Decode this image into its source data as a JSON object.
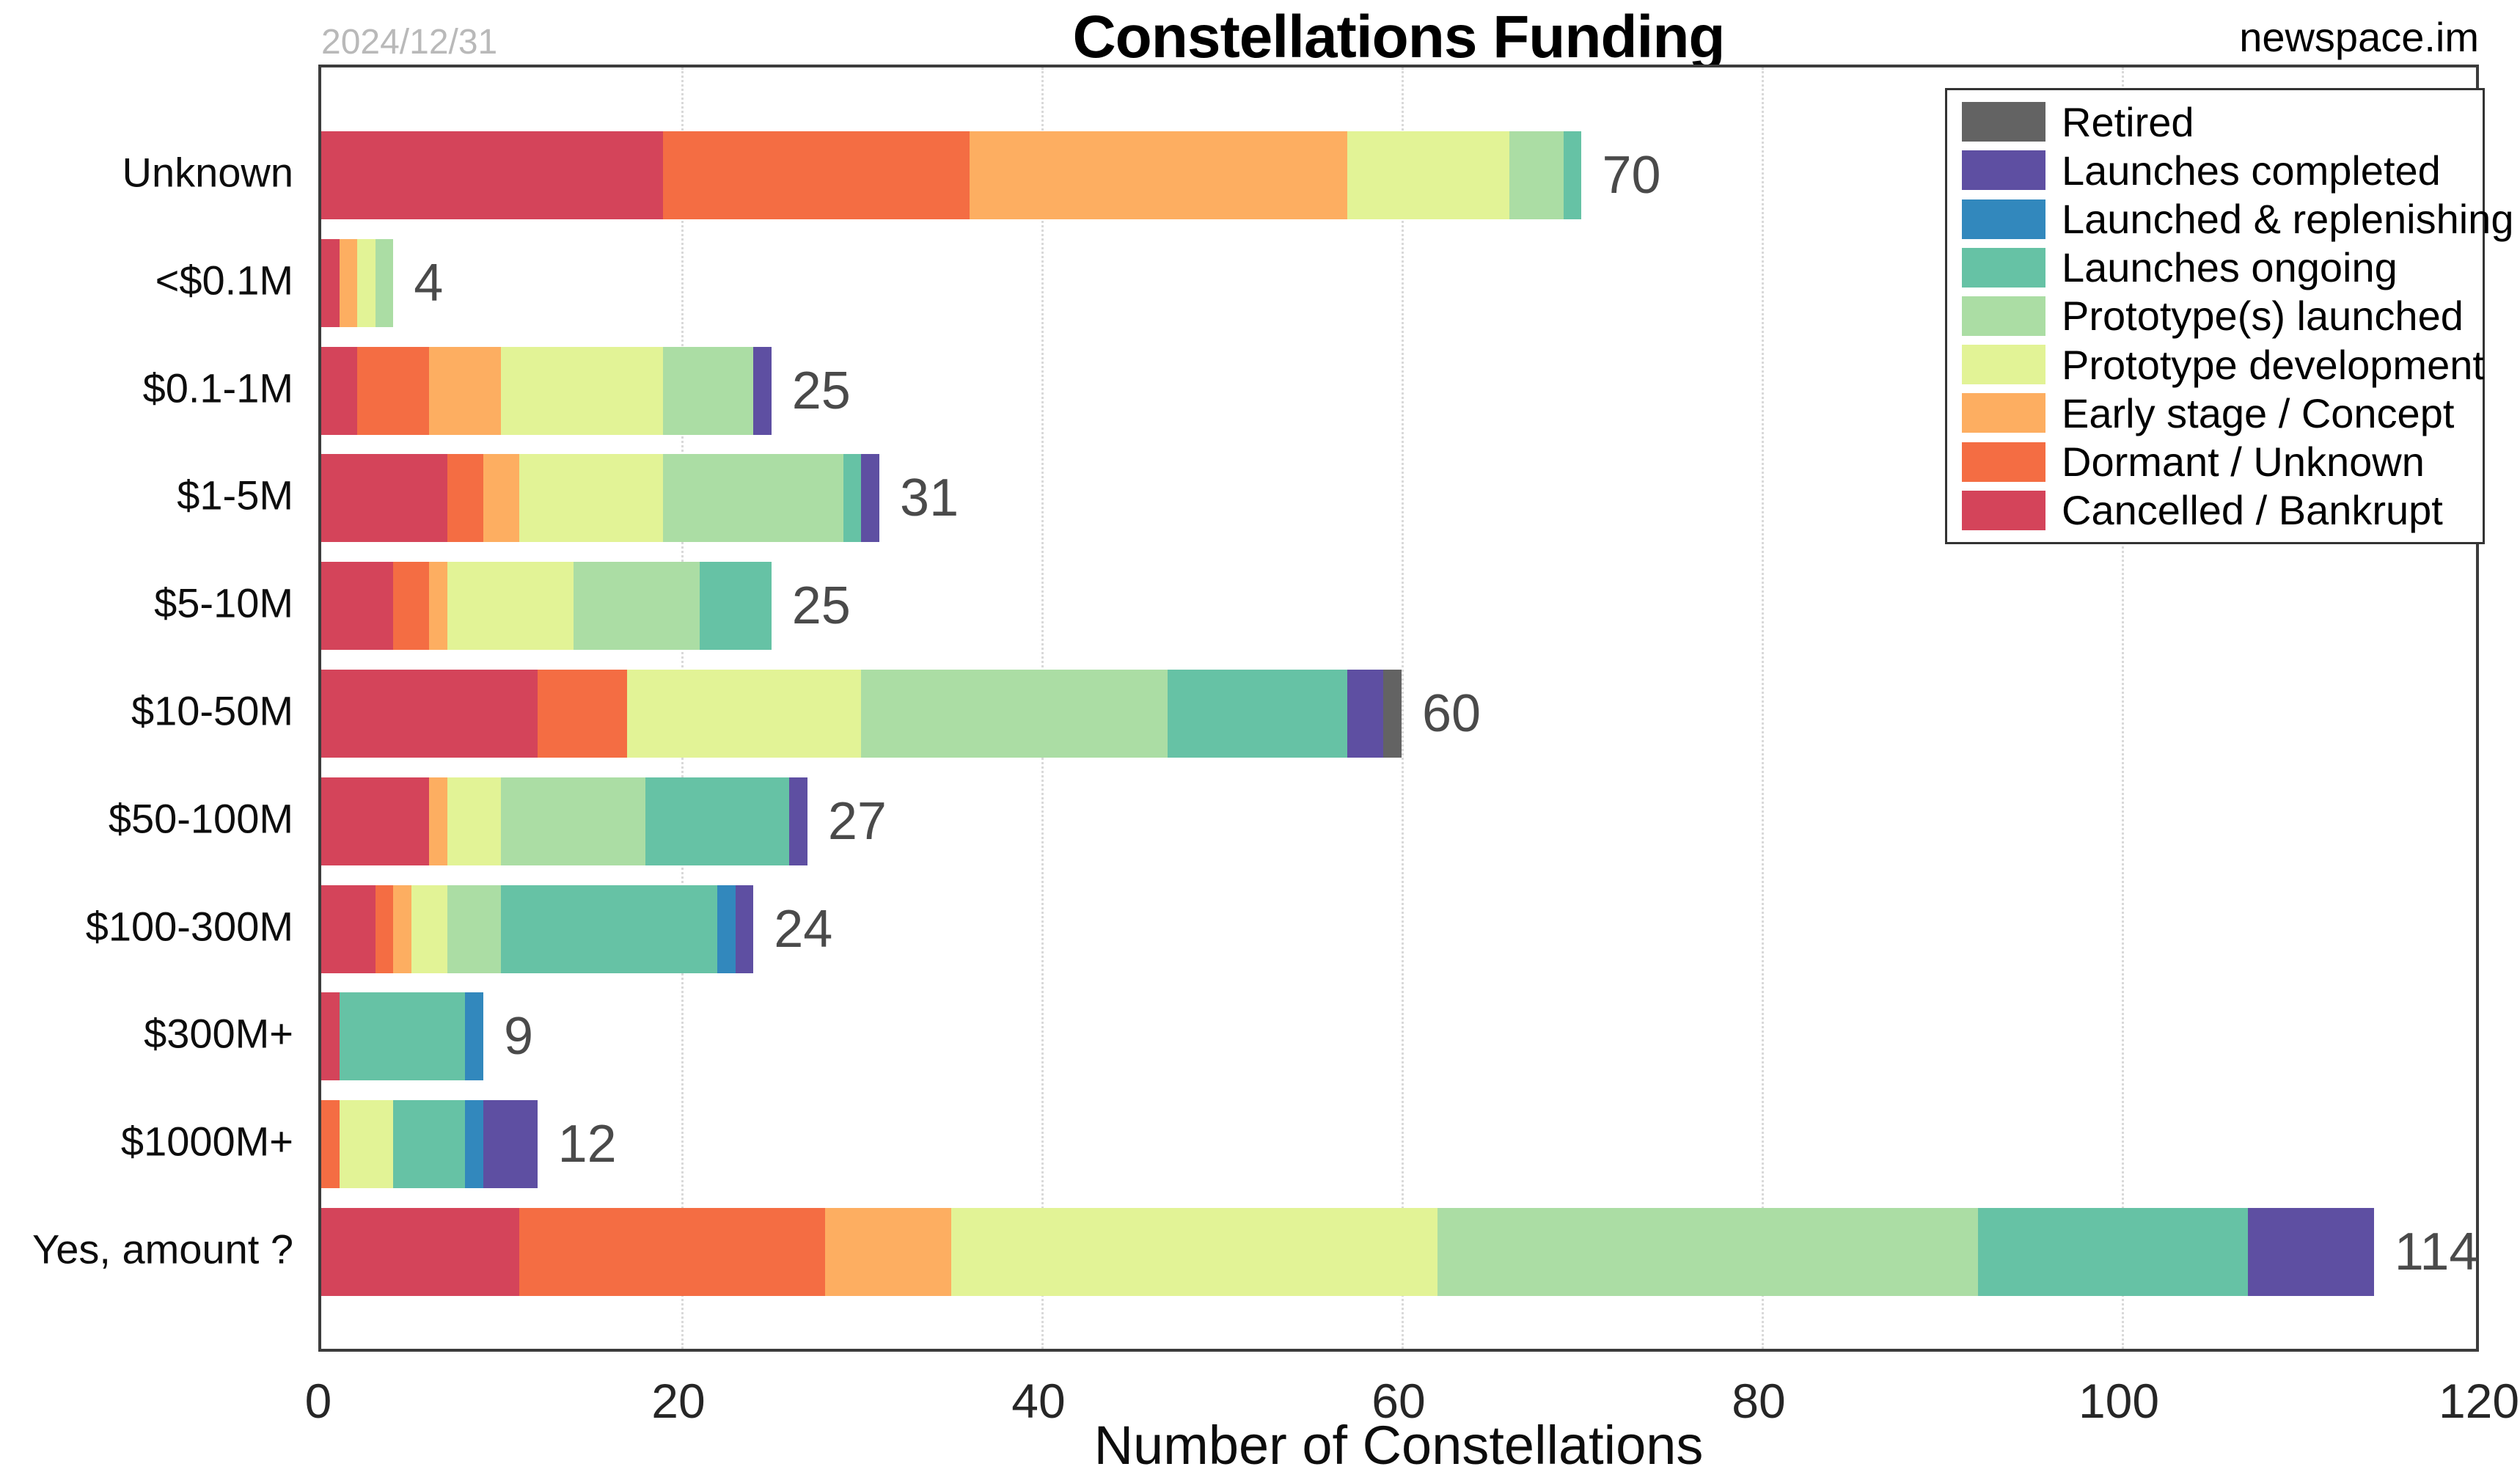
{
  "chart_data": {
    "type": "bar",
    "orientation": "horizontal-stacked",
    "title": "Constellations Funding",
    "date_label": "2024/12/31",
    "watermark": "newspace.im",
    "xlabel": "Number of Constellations",
    "xlim": [
      0,
      120
    ],
    "xticks": [
      0,
      20,
      40,
      60,
      80,
      100,
      120
    ],
    "grid": "vertical-dotted",
    "legend_position": "top-right-inside",
    "categories": [
      "Unknown",
      "<$0.1M",
      "$0.1-1M",
      "$1-5M",
      "$5-10M",
      "$10-50M",
      "$50-100M",
      "$100-300M",
      "$300M+",
      "$1000M+",
      "Yes, amount ?"
    ],
    "totals": [
      70,
      4,
      25,
      31,
      25,
      60,
      27,
      24,
      9,
      12,
      114
    ],
    "series": [
      {
        "name": "Cancelled / Bankrupt",
        "color": "#d4445a",
        "values": [
          19,
          1,
          2,
          7,
          4,
          12,
          6,
          3,
          1,
          0,
          11
        ]
      },
      {
        "name": "Dormant / Unknown",
        "color": "#f46d43",
        "values": [
          17,
          0,
          4,
          2,
          2,
          5,
          0,
          1,
          0,
          1,
          17
        ]
      },
      {
        "name": "Early stage / Concept",
        "color": "#fdae61",
        "values": [
          21,
          1,
          4,
          2,
          1,
          0,
          1,
          1,
          0,
          0,
          7
        ]
      },
      {
        "name": "Prototype development",
        "color": "#e2f396",
        "values": [
          9,
          1,
          9,
          8,
          7,
          13,
          3,
          2,
          0,
          3,
          27
        ]
      },
      {
        "name": "Prototype(s) launched",
        "color": "#abdda4",
        "values": [
          3,
          1,
          5,
          10,
          7,
          17,
          8,
          3,
          0,
          0,
          30
        ]
      },
      {
        "name": "Launches ongoing",
        "color": "#66c2a5",
        "values": [
          1,
          0,
          0,
          1,
          4,
          10,
          8,
          12,
          7,
          4,
          15
        ]
      },
      {
        "name": "Launched & replenishing",
        "color": "#3288bd",
        "values": [
          0,
          0,
          0,
          0,
          0,
          0,
          0,
          1,
          1,
          1,
          0
        ]
      },
      {
        "name": "Launches completed",
        "color": "#5e4fa2",
        "values": [
          0,
          0,
          1,
          1,
          0,
          2,
          1,
          1,
          0,
          3,
          7
        ]
      },
      {
        "name": "Retired",
        "color": "#636363",
        "values": [
          0,
          0,
          0,
          0,
          0,
          1,
          0,
          0,
          0,
          0,
          0
        ]
      }
    ],
    "legend": [
      {
        "label": "Retired",
        "color": "#636363"
      },
      {
        "label": "Launches completed",
        "color": "#5e4fa2"
      },
      {
        "label": "Launched & replenishing",
        "color": "#3288bd"
      },
      {
        "label": "Launches ongoing",
        "color": "#66c2a5"
      },
      {
        "label": "Prototype(s) launched",
        "color": "#abdda4"
      },
      {
        "label": "Prototype development",
        "color": "#e2f396"
      },
      {
        "label": "Early stage / Concept",
        "color": "#fdae61"
      },
      {
        "label": "Dormant / Unknown",
        "color": "#f46d43"
      },
      {
        "label": "Cancelled / Bankrupt",
        "color": "#d4445a"
      }
    ]
  }
}
